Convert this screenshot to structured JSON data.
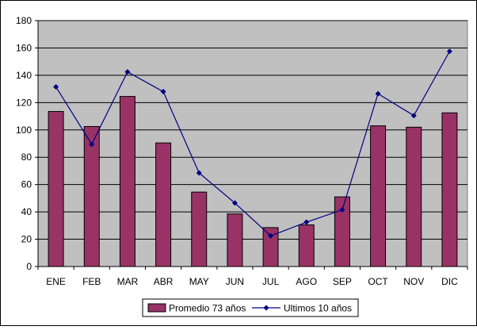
{
  "chart_data": {
    "type": "bar",
    "categories": [
      "ENE",
      "FEB",
      "MAR",
      "ABR",
      "MAY",
      "JUN",
      "JUL",
      "AGO",
      "SEP",
      "OCT",
      "NOV",
      "DIC"
    ],
    "series": [
      {
        "name": "Promedio 73 años",
        "type": "bar",
        "values": [
          113.5,
          102.5,
          124.5,
          90.5,
          54.5,
          38.5,
          28.5,
          30.5,
          51.0,
          103.0,
          102.0,
          112.5
        ],
        "color": "#993366"
      },
      {
        "name": "Ultimos 10 años",
        "type": "line",
        "values": [
          131.5,
          89.5,
          142.5,
          128.0,
          68.5,
          46.5,
          22.5,
          32.5,
          41.5,
          126.5,
          110.5,
          157.5
        ],
        "color": "#000080"
      }
    ],
    "ylim": [
      0,
      180
    ],
    "yticks": [
      0,
      20,
      40,
      60,
      80,
      100,
      120,
      140,
      160,
      180
    ],
    "ytick_labels": [
      "0",
      "20",
      "40",
      "60",
      "80",
      "100",
      "120",
      "140",
      "160",
      "180"
    ],
    "grid": true,
    "legend_position": "bottom",
    "plot_background": "#c0c0c0",
    "grid_color": "#000000"
  }
}
